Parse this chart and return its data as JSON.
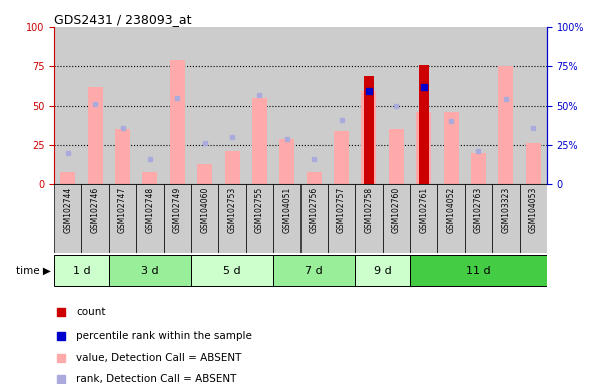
{
  "title": "GDS2431 / 238093_at",
  "samples": [
    "GSM102744",
    "GSM102746",
    "GSM102747",
    "GSM102748",
    "GSM102749",
    "GSM104060",
    "GSM102753",
    "GSM102755",
    "GSM104051",
    "GSM102756",
    "GSM102757",
    "GSM102758",
    "GSM102760",
    "GSM102761",
    "GSM104052",
    "GSM102763",
    "GSM103323",
    "GSM104053"
  ],
  "time_groups": [
    {
      "label": "1 d",
      "start": 0,
      "end": 2,
      "color": "#ccffcc"
    },
    {
      "label": "3 d",
      "start": 2,
      "end": 5,
      "color": "#99ee99"
    },
    {
      "label": "5 d",
      "start": 5,
      "end": 8,
      "color": "#ccffcc"
    },
    {
      "label": "7 d",
      "start": 8,
      "end": 11,
      "color": "#99ee99"
    },
    {
      "label": "9 d",
      "start": 11,
      "end": 13,
      "color": "#ccffcc"
    },
    {
      "label": "11 d",
      "start": 13,
      "end": 18,
      "color": "#44cc44"
    }
  ],
  "pink_bar_values": [
    8,
    62,
    35,
    8,
    79,
    13,
    21,
    55,
    29,
    8,
    34,
    59,
    35,
    46,
    46,
    20,
    75,
    26
  ],
  "blue_square_values": [
    20,
    51,
    36,
    16,
    55,
    26,
    30,
    57,
    29,
    16,
    41,
    61,
    50,
    62,
    40,
    21,
    54,
    36
  ],
  "red_bar_values": [
    0,
    0,
    0,
    0,
    0,
    0,
    0,
    0,
    0,
    0,
    0,
    69,
    0,
    76,
    0,
    0,
    0,
    0
  ],
  "blue_dot_values": [
    0,
    0,
    0,
    0,
    0,
    0,
    0,
    0,
    0,
    0,
    0,
    59,
    0,
    62,
    0,
    0,
    0,
    0
  ],
  "pink_bar_color": "#ffaaaa",
  "blue_square_color": "#aaaadd",
  "red_bar_color": "#cc0000",
  "blue_dot_color": "#0000cc",
  "col_bg_odd": "#cccccc",
  "col_bg_even": "#bbbbbb",
  "plot_bg": "#ffffff",
  "left_axis_color": "#cc0000",
  "right_axis_color": "#0000cc",
  "ylim": [
    0,
    100
  ],
  "bar_width": 0.55
}
